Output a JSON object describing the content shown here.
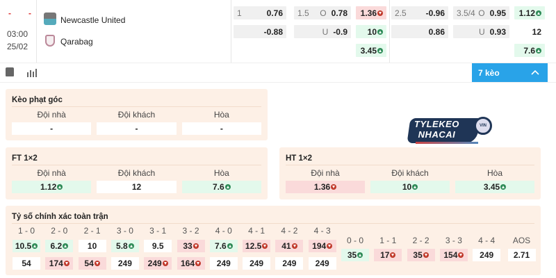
{
  "match": {
    "home_score": "-",
    "away_score": "-",
    "time": "03:00",
    "date": "25/02",
    "home": "Newcastle United",
    "away": "Qarabag"
  },
  "odds_rows": [
    [
      {
        "l": "1",
        "v": "0.76",
        "c": "grey"
      },
      {
        "l": "1.5",
        "m": "O",
        "v": "0.78",
        "c": "grey"
      },
      {
        "v": "1.36",
        "c": "red",
        "t": "down"
      },
      {
        "l": "2.5",
        "v": "-0.96",
        "c": "grey"
      },
      {
        "l": "3.5/4",
        "m": "O",
        "v": "0.95",
        "c": "grey"
      },
      {
        "v": "1.12",
        "c": "green",
        "t": "up"
      }
    ],
    [
      {
        "v": "-0.88",
        "c": "grey"
      },
      {
        "m": "U",
        "v": "-0.9",
        "c": "grey"
      },
      {
        "v": "10",
        "c": "green",
        "t": "up"
      },
      {
        "v": "0.86",
        "c": "grey"
      },
      {
        "m": "U",
        "v": "0.93",
        "c": "grey"
      },
      {
        "v": "12",
        "c": "white"
      }
    ],
    [
      null,
      null,
      {
        "v": "3.45",
        "c": "green",
        "t": "up"
      },
      null,
      null,
      {
        "v": "7.6",
        "c": "green",
        "t": "up"
      }
    ]
  ],
  "toolbar": {
    "more_label": "7 kèo",
    "icons": [
      "jersey-icon",
      "stats-icon",
      "chevron-up-icon"
    ],
    "accent": "#29a3e8"
  },
  "logo": {
    "line1": "TYLEKEO",
    "line2": "NHACAI",
    "badge": "VIN"
  },
  "panels": {
    "corner": {
      "title": "Kèo phạt góc",
      "cols": [
        "Đội nhà",
        "Đội khách",
        "Hòa"
      ],
      "vals": [
        {
          "v": "-",
          "c": "white"
        },
        {
          "v": "-",
          "c": "white"
        },
        {
          "v": "-",
          "c": "white"
        }
      ]
    },
    "ft": {
      "title": "FT 1×2",
      "cols": [
        "Đội nhà",
        "Đội khách",
        "Hòa"
      ],
      "vals": [
        {
          "v": "1.12",
          "c": "green",
          "t": "up"
        },
        {
          "v": "12",
          "c": "white"
        },
        {
          "v": "7.6",
          "c": "green",
          "t": "up"
        }
      ]
    },
    "ht": {
      "title": "HT 1×2",
      "cols": [
        "Đội nhà",
        "Đội khách",
        "Hòa"
      ],
      "vals": [
        {
          "v": "1.36",
          "c": "red",
          "t": "down"
        },
        {
          "v": "10",
          "c": "green",
          "t": "up"
        },
        {
          "v": "3.45",
          "c": "green",
          "t": "up"
        }
      ]
    }
  },
  "correct_score": {
    "title": "Tỷ số chính xác toàn trận",
    "home": [
      {
        "s": "1 - 0",
        "a": {
          "v": "10.5",
          "c": "green",
          "t": "up"
        },
        "b": {
          "v": "54",
          "c": "white"
        }
      },
      {
        "s": "2 - 0",
        "a": {
          "v": "6.2",
          "c": "green",
          "t": "up"
        },
        "b": {
          "v": "174",
          "c": "red",
          "t": "down"
        }
      },
      {
        "s": "2 - 1",
        "a": {
          "v": "10",
          "c": "white"
        },
        "b": {
          "v": "54",
          "c": "red",
          "t": "down"
        }
      },
      {
        "s": "3 - 0",
        "a": {
          "v": "5.8",
          "c": "green",
          "t": "up"
        },
        "b": {
          "v": "249",
          "c": "white"
        }
      },
      {
        "s": "3 - 1",
        "a": {
          "v": "9.5",
          "c": "white"
        },
        "b": {
          "v": "249",
          "c": "red",
          "t": "down"
        }
      },
      {
        "s": "3 - 2",
        "a": {
          "v": "33",
          "c": "red",
          "t": "down"
        },
        "b": {
          "v": "164",
          "c": "red",
          "t": "down"
        }
      },
      {
        "s": "4 - 0",
        "a": {
          "v": "7.6",
          "c": "green",
          "t": "up"
        },
        "b": {
          "v": "249",
          "c": "white"
        }
      },
      {
        "s": "4 - 1",
        "a": {
          "v": "12.5",
          "c": "red",
          "t": "down"
        },
        "b": {
          "v": "249",
          "c": "white"
        }
      },
      {
        "s": "4 - 2",
        "a": {
          "v": "41",
          "c": "red",
          "t": "down"
        },
        "b": {
          "v": "249",
          "c": "white"
        }
      },
      {
        "s": "4 - 3",
        "a": {
          "v": "194",
          "c": "red",
          "t": "down"
        },
        "b": {
          "v": "249",
          "c": "white"
        }
      }
    ],
    "draw": [
      {
        "s": "0 - 0",
        "a": {
          "v": "35",
          "c": "green",
          "t": "up"
        }
      },
      {
        "s": "1 - 1",
        "a": {
          "v": "17",
          "c": "red",
          "t": "down"
        }
      },
      {
        "s": "2 - 2",
        "a": {
          "v": "35",
          "c": "red",
          "t": "down"
        }
      },
      {
        "s": "3 - 3",
        "a": {
          "v": "154",
          "c": "red",
          "t": "down"
        }
      },
      {
        "s": "4 - 4",
        "a": {
          "v": "249",
          "c": "white"
        }
      },
      {
        "s": "AOS",
        "a": {
          "v": "2.71",
          "c": "white"
        }
      }
    ]
  }
}
